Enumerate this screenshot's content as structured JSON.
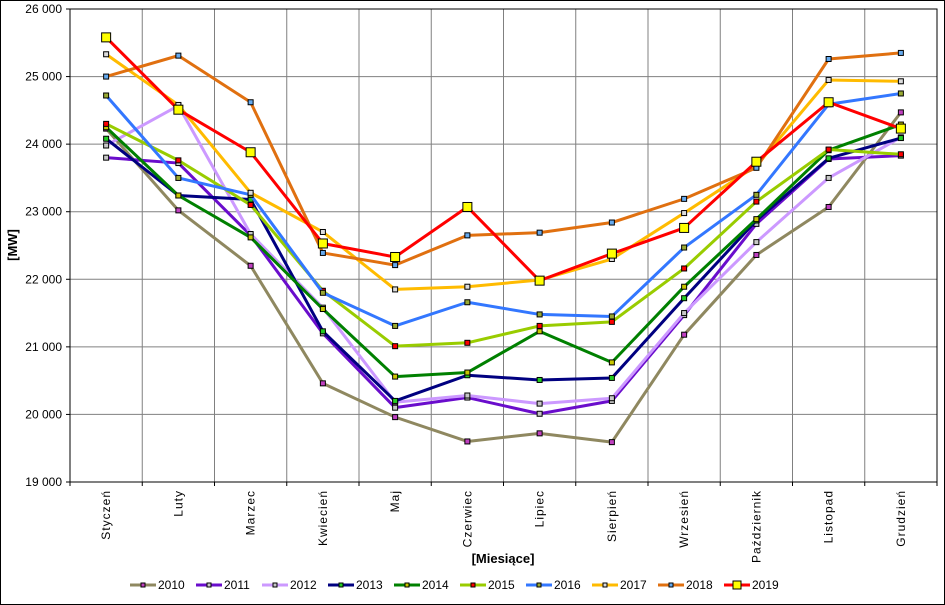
{
  "chart_data": {
    "type": "line",
    "title": "",
    "xlabel": "[Miesiące]",
    "ylabel": "[MW]",
    "ylim": [
      19000,
      26000
    ],
    "yticks": [
      19000,
      20000,
      21000,
      22000,
      23000,
      24000,
      25000,
      26000
    ],
    "ytick_labels": [
      "19 000",
      "20 000",
      "21 000",
      "22 000",
      "23 000",
      "24 000",
      "25 000",
      "26 000"
    ],
    "grid": true,
    "legend_position": "bottom",
    "categories": [
      "Styczeń",
      "Luty",
      "Marzec",
      "Kwiecień",
      "Maj",
      "Czerwiec",
      "Lipiec",
      "Sierpień",
      "Wrzesień",
      "Październik",
      "Listopad",
      "Grudzień"
    ],
    "series": [
      {
        "name": "2010",
        "color": "#8f8860",
        "marker": "#c040c0",
        "values": [
          24230,
          23020,
          22200,
          20460,
          19960,
          19600,
          19720,
          19590,
          21180,
          22360,
          23070,
          24470
        ]
      },
      {
        "name": "2011",
        "color": "#6a0dcc",
        "marker": "#c8c8c8",
        "values": [
          23800,
          23720,
          22650,
          21200,
          20100,
          20250,
          20010,
          20200,
          21470,
          22820,
          23780,
          23830
        ]
      },
      {
        "name": "2012",
        "color": "#cc99ff",
        "marker": "#c8c8c8",
        "values": [
          23980,
          24570,
          22670,
          21580,
          20180,
          20280,
          20160,
          20240,
          21500,
          22550,
          23500,
          24100
        ]
      },
      {
        "name": "2013",
        "color": "#000080",
        "marker": "#22cc22",
        "values": [
          24080,
          23240,
          23180,
          21230,
          20200,
          20580,
          20510,
          20540,
          21720,
          22870,
          23790,
          24090
        ]
      },
      {
        "name": "2014",
        "color": "#008000",
        "marker": "#c8c800",
        "values": [
          24250,
          23240,
          22620,
          21560,
          20560,
          20620,
          21230,
          20770,
          21890,
          22890,
          23910,
          24290
        ]
      },
      {
        "name": "2015",
        "color": "#99cc00",
        "marker": "#ff0000",
        "values": [
          24300,
          23760,
          23100,
          21830,
          21010,
          21060,
          21310,
          21370,
          22160,
          23150,
          23920,
          23850
        ]
      },
      {
        "name": "2016",
        "color": "#3377ff",
        "marker": "#99aa33",
        "values": [
          24720,
          23500,
          23250,
          21800,
          21310,
          21660,
          21480,
          21450,
          22470,
          23250,
          24590,
          24750
        ]
      },
      {
        "name": "2017",
        "color": "#ffbb00",
        "marker": "#dddddd",
        "values": [
          25330,
          24580,
          23280,
          22700,
          21850,
          21890,
          21990,
          22300,
          22980,
          23680,
          24950,
          24930
        ]
      },
      {
        "name": "2018",
        "color": "#e07010",
        "marker": "#66aaee",
        "values": [
          25000,
          25310,
          24620,
          22390,
          22210,
          22650,
          22690,
          22840,
          23190,
          23650,
          25260,
          25350
        ]
      },
      {
        "name": "2019",
        "color": "#ff0000",
        "marker": "#ffff00",
        "values": [
          25580,
          24510,
          23880,
          22530,
          22330,
          23070,
          21980,
          22380,
          22760,
          23740,
          24620,
          24230
        ]
      }
    ]
  }
}
